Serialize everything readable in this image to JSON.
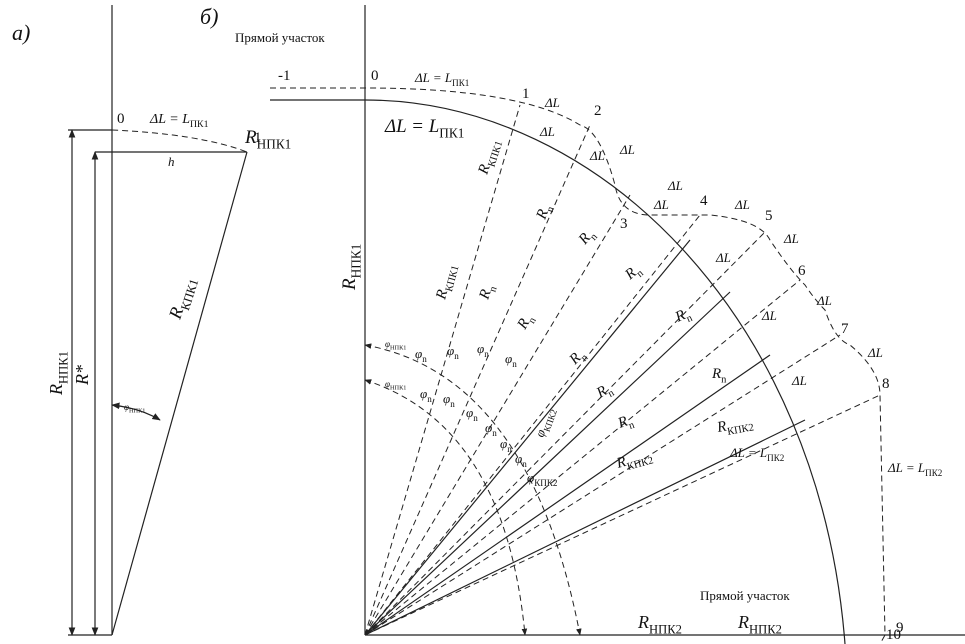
{
  "panel_a": {
    "labels": [
      {
        "text": "а)"
      },
      {
        "text": "0"
      },
      {
        "text": "ΔL = L",
        "sub": "ПК1"
      },
      {
        "text": "1"
      },
      {
        "text": "h"
      },
      {
        "text": "R",
        "sub": "НПК1"
      },
      {
        "text": "R*"
      },
      {
        "text": "R",
        "sub": "КПК1"
      },
      {
        "text": "φ",
        "sub": "НПК1"
      }
    ]
  },
  "panel_b": {
    "labels": [
      {
        "text": "б)"
      },
      {
        "text": "Прямой участок"
      },
      {
        "text": "-1"
      },
      {
        "text": "0"
      },
      {
        "text": "ΔL = L",
        "sub": "ПК1"
      },
      {
        "text": "1"
      },
      {
        "text": "ΔL"
      },
      {
        "text": "2"
      },
      {
        "text": "ΔL = L",
        "sub": "ПК1"
      },
      {
        "text": "R",
        "sub": "НПК1"
      },
      {
        "text": "ΔL"
      },
      {
        "text": "ΔL"
      },
      {
        "text": "ΔL"
      },
      {
        "text": "R",
        "sub": "КПК1"
      },
      {
        "text": "R",
        "sub": "n"
      },
      {
        "text": "ΔL"
      },
      {
        "text": "ΔL"
      },
      {
        "text": "3"
      },
      {
        "text": "4"
      },
      {
        "text": "ΔL"
      },
      {
        "text": "5"
      },
      {
        "text": "R",
        "sub": "n"
      },
      {
        "text": "R",
        "sub": "НПК1"
      },
      {
        "text": "ΔL"
      },
      {
        "text": "ΔL"
      },
      {
        "text": "6"
      },
      {
        "text": "R",
        "sub": "КПК1"
      },
      {
        "text": "R",
        "sub": "n"
      },
      {
        "text": "R",
        "sub": "n"
      },
      {
        "text": "ΔL"
      },
      {
        "text": "ΔL"
      },
      {
        "text": "R",
        "sub": "n"
      },
      {
        "text": "R",
        "sub": "n"
      },
      {
        "text": "7"
      },
      {
        "text": "ΔL"
      },
      {
        "text": "R",
        "sub": "n"
      },
      {
        "text": "R",
        "sub": "n"
      },
      {
        "text": "8"
      },
      {
        "text": "ΔL"
      },
      {
        "text": "R",
        "sub": "n"
      },
      {
        "text": "R",
        "sub": "n"
      },
      {
        "text": "R",
        "sub": "КПК2"
      },
      {
        "text": "R",
        "sub": "КПК2"
      },
      {
        "text": "ΔL = L",
        "sub": "ПК2"
      },
      {
        "text": "ΔL = L",
        "sub": "ПК2"
      },
      {
        "text": "R",
        "sub": "НПК2"
      },
      {
        "text": "R",
        "sub": "НПК2"
      },
      {
        "text": "9"
      },
      {
        "text": "Прямой участок"
      },
      {
        "text": "10"
      },
      {
        "text": "φ",
        "sub": "НПК1"
      },
      {
        "text": "φ",
        "sub": "НПК1"
      },
      {
        "text": "φ",
        "sub": "n"
      },
      {
        "text": "φ",
        "sub": "n"
      },
      {
        "text": "φ",
        "sub": "n"
      },
      {
        "text": "φ",
        "sub": "n"
      },
      {
        "text": "φ",
        "sub": "n"
      },
      {
        "text": "φ",
        "sub": "n"
      },
      {
        "text": "φ",
        "sub": "n"
      },
      {
        "text": "φ",
        "sub": "n"
      },
      {
        "text": "φ",
        "sub": "n"
      },
      {
        "text": "φ",
        "sub": "n"
      },
      {
        "text": "φ",
        "sub": "КПК2"
      },
      {
        "text": "φ",
        "sub": "КПК2"
      }
    ]
  }
}
